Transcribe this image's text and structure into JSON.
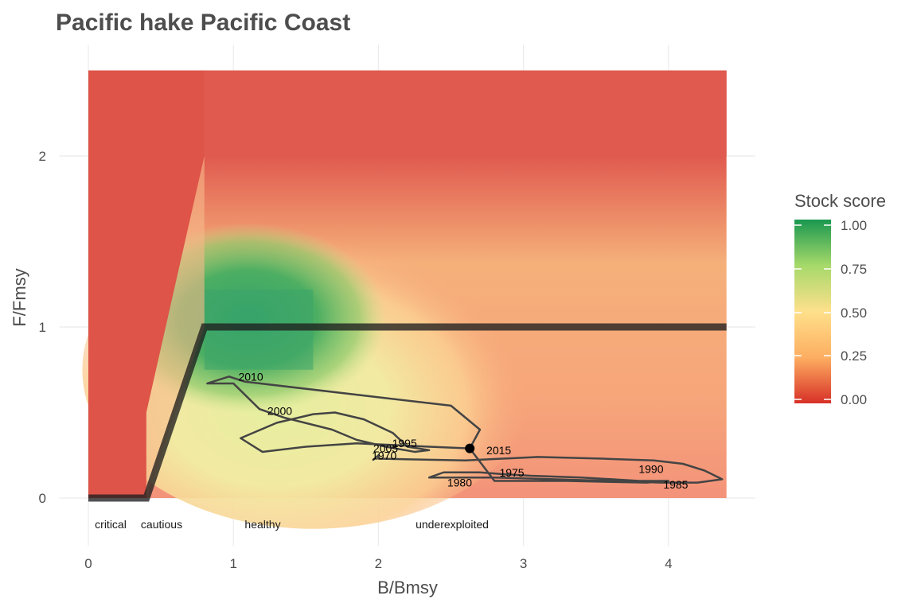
{
  "chart_data": {
    "type": "line",
    "title": "Pacific hake Pacific Coast",
    "xlabel": "B/Bmsy",
    "ylabel": "F/Fmsy",
    "xlim": [
      -0.2,
      4.6
    ],
    "ylim": [
      -0.28,
      2.65
    ],
    "x_ticks": [
      "0",
      "1",
      "2",
      "3",
      "4"
    ],
    "y_ticks": [
      "0",
      "1",
      "2"
    ],
    "grid": true,
    "background": "stock status score surface (red = 0, green = 1)",
    "control_rule": {
      "x": [
        0,
        0.4,
        0.8,
        4.4
      ],
      "y": [
        0,
        0,
        1,
        1
      ]
    },
    "zones": [
      "critical",
      "cautious",
      "healthy",
      "underexploited"
    ],
    "trajectory": {
      "x": [
        1.96,
        2.0,
        2.0,
        2.6,
        3.1,
        3.55,
        3.9,
        4.1,
        4.25,
        4.37,
        4.2,
        3.95,
        3.6,
        3.2,
        2.8,
        2.35,
        2.45,
        2.7,
        2.85,
        3.05,
        3.4,
        3.8,
        4.0,
        3.85,
        3.3,
        2.8,
        2.63,
        2.35,
        2.1,
        1.85,
        1.5,
        1.2,
        1.05,
        1.3,
        1.55,
        1.7,
        1.9,
        2.1,
        2.2,
        2.35,
        2.25,
        2.05,
        1.85,
        1.68,
        1.35,
        1.18,
        1.0,
        0.82,
        0.97,
        1.08,
        2.5,
        2.7,
        2.63
      ],
      "y": [
        0.22,
        0.25,
        0.23,
        0.22,
        0.24,
        0.23,
        0.22,
        0.2,
        0.16,
        0.11,
        0.09,
        0.09,
        0.1,
        0.11,
        0.12,
        0.12,
        0.15,
        0.15,
        0.14,
        0.13,
        0.12,
        0.1,
        0.1,
        0.09,
        0.1,
        0.1,
        0.29,
        0.3,
        0.31,
        0.32,
        0.3,
        0.27,
        0.35,
        0.44,
        0.49,
        0.5,
        0.46,
        0.38,
        0.3,
        0.28,
        0.27,
        0.3,
        0.34,
        0.4,
        0.47,
        0.52,
        0.67,
        0.67,
        0.71,
        0.68,
        0.54,
        0.4,
        0.29
      ]
    },
    "year_labels": [
      {
        "label": "1970",
        "x": 2.04,
        "y": 0.25
      },
      {
        "label": "1975",
        "x": 2.92,
        "y": 0.15
      },
      {
        "label": "1980",
        "x": 2.56,
        "y": 0.09
      },
      {
        "label": "1985",
        "x": 4.05,
        "y": 0.08
      },
      {
        "label": "1990",
        "x": 3.88,
        "y": 0.17
      },
      {
        "label": "1995",
        "x": 2.18,
        "y": 0.32
      },
      {
        "label": "2000",
        "x": 1.32,
        "y": 0.51
      },
      {
        "label": "2005",
        "x": 2.05,
        "y": 0.29
      },
      {
        "label": "2010",
        "x": 1.12,
        "y": 0.71
      },
      {
        "label": "2015",
        "x": 2.83,
        "y": 0.28
      }
    ],
    "current_point": {
      "x": 2.63,
      "y": 0.29
    },
    "legend": {
      "title": "Stock score",
      "ticks": [
        "1.00",
        "0.75",
        "0.50",
        "0.25",
        "0.00"
      ],
      "placement": "right",
      "colors": {
        "low": "#d73027",
        "mid_low": "#fdae61",
        "mid": "#fee08b",
        "mid_high": "#a6d96a",
        "high": "#1a9850"
      }
    }
  }
}
